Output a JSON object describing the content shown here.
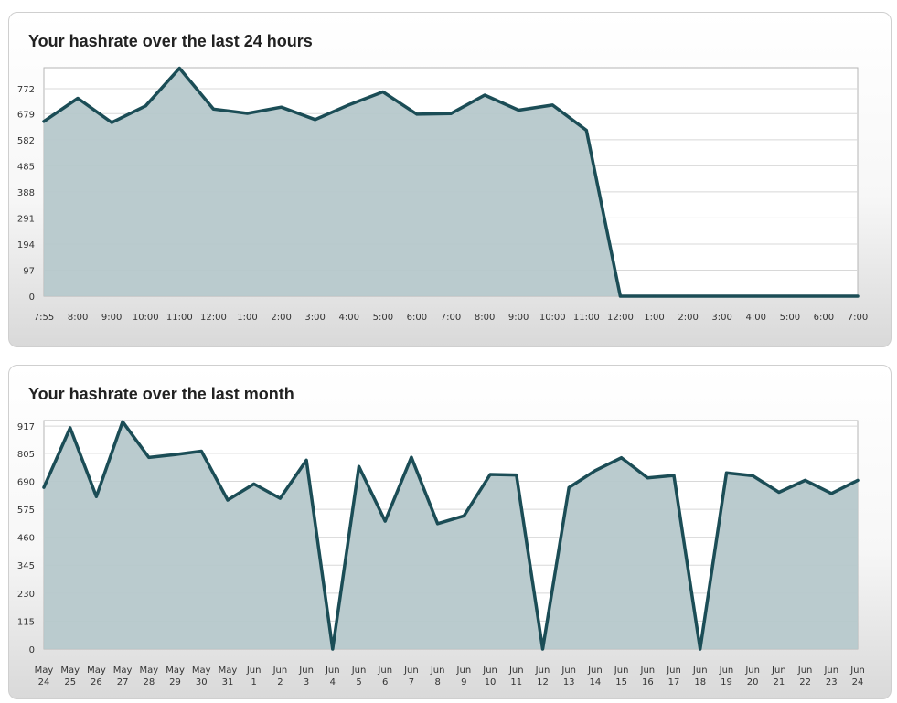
{
  "panels": [
    {
      "title": "Your hashrate over the last 24 hours",
      "chart_data": {
        "type": "area",
        "title": "Your hashrate over the last 24 hours",
        "ylim": [
          0,
          850
        ],
        "yticks": [
          "0",
          "97",
          "194",
          "291",
          "388",
          "485",
          "582",
          "679",
          "772"
        ],
        "xticks": [
          "7:55",
          "8:00",
          "9:00",
          "10:00",
          "11:00",
          "12:00",
          "1:00",
          "2:00",
          "3:00",
          "4:00",
          "5:00",
          "6:00",
          "7:00",
          "8:00",
          "9:00",
          "10:00",
          "11:00",
          "12:00",
          "1:00",
          "2:00",
          "3:00",
          "4:00",
          "5:00",
          "6:00",
          "7:00"
        ],
        "grid": true,
        "series": [
          {
            "values": [
              650,
              736,
              646,
              708,
              848,
              696,
              680,
              703,
              657,
              712,
              760,
              677,
              679,
              748,
              692,
              711,
              617,
              0,
              0,
              0,
              0,
              0,
              0,
              0,
              0
            ]
          }
        ],
        "colors": {
          "line": "#1b4d56",
          "fill": "#b6c8cb"
        }
      }
    },
    {
      "title": "Your hashrate over the last month",
      "chart_data": {
        "type": "area",
        "title": "Your hashrate over the last month",
        "ylim": [
          0,
          940
        ],
        "yticks": [
          "0",
          "115",
          "230",
          "345",
          "460",
          "575",
          "690",
          "805",
          "917"
        ],
        "xticks": [
          [
            "May",
            "24"
          ],
          [
            "May",
            "25"
          ],
          [
            "May",
            "26"
          ],
          [
            "May",
            "27"
          ],
          [
            "May",
            "28"
          ],
          [
            "May",
            "29"
          ],
          [
            "May",
            "30"
          ],
          [
            "May",
            "31"
          ],
          [
            "Jun",
            "1"
          ],
          [
            "Jun",
            "2"
          ],
          [
            "Jun",
            "3"
          ],
          [
            "Jun",
            "4"
          ],
          [
            "Jun",
            "5"
          ],
          [
            "Jun",
            "6"
          ],
          [
            "Jun",
            "7"
          ],
          [
            "Jun",
            "8"
          ],
          [
            "Jun",
            "9"
          ],
          [
            "Jun",
            "10"
          ],
          [
            "Jun",
            "11"
          ],
          [
            "Jun",
            "12"
          ],
          [
            "Jun",
            "13"
          ],
          [
            "Jun",
            "14"
          ],
          [
            "Jun",
            "15"
          ],
          [
            "Jun",
            "16"
          ],
          [
            "Jun",
            "17"
          ],
          [
            "Jun",
            "18"
          ],
          [
            "Jun",
            "19"
          ],
          [
            "Jun",
            "20"
          ],
          [
            "Jun",
            "21"
          ],
          [
            "Jun",
            "22"
          ],
          [
            "Jun",
            "23"
          ],
          [
            "Jun",
            "24"
          ]
        ],
        "grid": true,
        "series": [
          {
            "values": [
              665,
              910,
              627,
              935,
              788,
              800,
              814,
              613,
              679,
              620,
              777,
              0,
              751,
              526,
              789,
              516,
              548,
              718,
              716,
              0,
              664,
              734,
              787,
              704,
              714,
              0,
              725,
              713,
              645,
              694,
              640,
              694
            ]
          }
        ],
        "colors": {
          "line": "#1b4d56",
          "fill": "#b6c8cb"
        }
      }
    }
  ]
}
